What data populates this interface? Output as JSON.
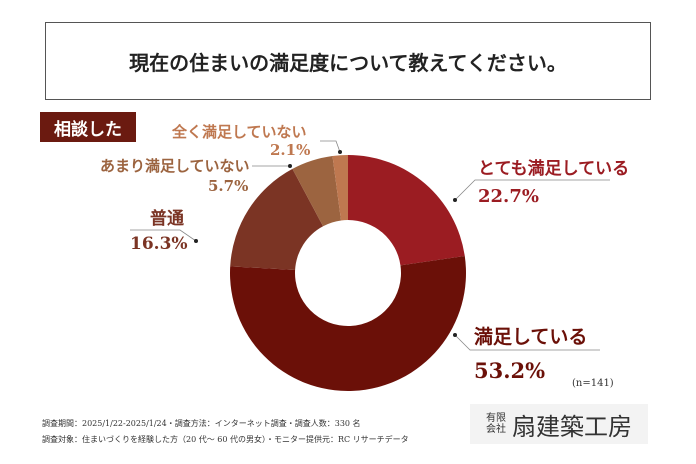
{
  "title": "現在の住まいの満足度について教えてください。",
  "tag": "相談した",
  "sample_size": "(n=141)",
  "footer": {
    "line1": "調査期間：2025/1/22-2025/1/24・調査方法：インターネット調査・調査人数：330 名",
    "line2": "調査対象：住まいづくりを経験した方（20 代～ 60 代の男女）・モニター提供元：RC リサーチデータ"
  },
  "logo": {
    "small_top": "有限",
    "small_bottom": "会社",
    "name": "扇建築工房"
  },
  "chart_data": {
    "type": "pie",
    "donut": true,
    "slices": [
      {
        "label": "とても満足している",
        "value": 22.7,
        "display": "22.7%",
        "color": "#9b1c22"
      },
      {
        "label": "満足している",
        "value": 53.2,
        "display": "53.2%",
        "color": "#6b1008"
      },
      {
        "label": "普通",
        "value": 16.3,
        "display": "16.3%",
        "color": "#7b3424"
      },
      {
        "label": "あまり満足していない",
        "value": 5.7,
        "display": "5.7%",
        "color": "#9c6440"
      },
      {
        "label": "全く満足していない",
        "value": 2.1,
        "display": "2.1%",
        "color": "#bf7850"
      }
    ]
  }
}
